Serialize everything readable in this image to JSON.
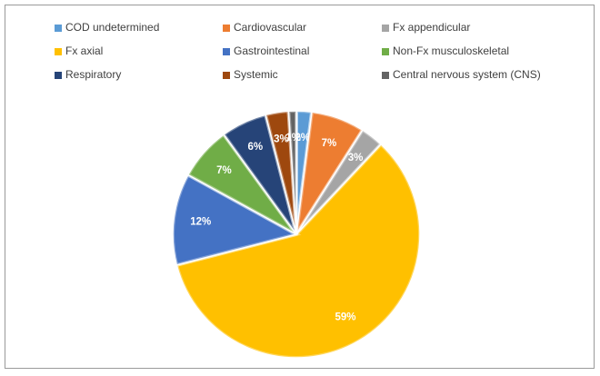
{
  "chart_data": {
    "type": "pie",
    "categories": [
      "COD undetermined",
      "Cardiovascular",
      "Fx appendicular",
      "Fx axial",
      "Gastrointestinal",
      "Non-Fx musculoskeletal",
      "Respiratory",
      "Systemic",
      "Central nervous system (CNS)"
    ],
    "values": [
      2,
      7,
      3,
      59,
      12,
      7,
      6,
      3,
      1
    ],
    "value_labels": [
      "2%",
      "7%",
      "3%",
      "59%",
      "12%",
      "7%",
      "6%",
      "3%",
      "1%"
    ],
    "colors": [
      "#5b9bd5",
      "#ed7d31",
      "#a5a5a5",
      "#ffc000",
      "#4472c4",
      "#70ad47",
      "#264478",
      "#9e480e",
      "#636363"
    ],
    "legend": "top"
  }
}
